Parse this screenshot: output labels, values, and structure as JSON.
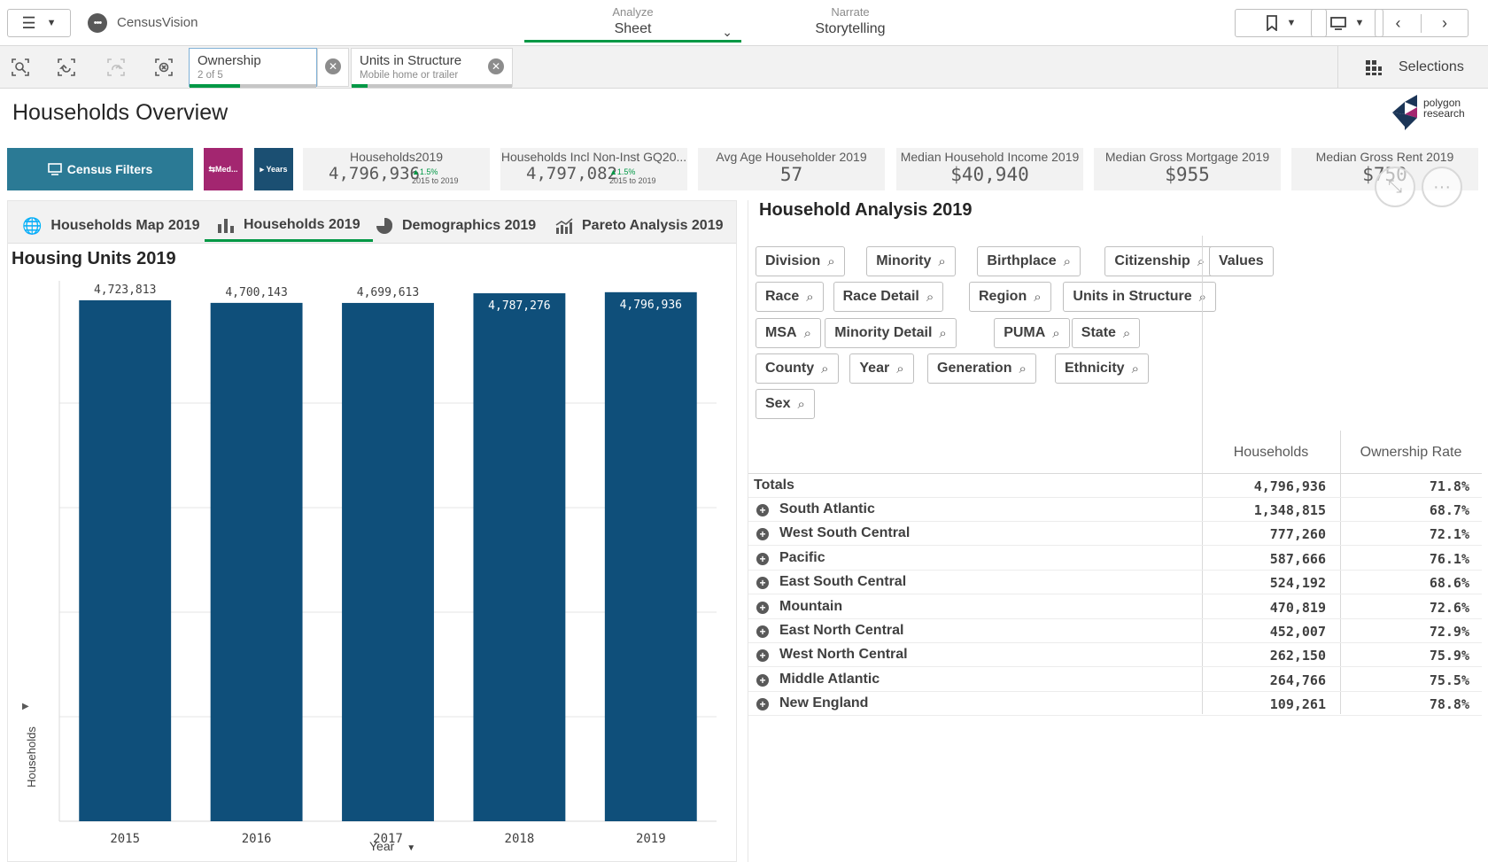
{
  "app": {
    "name": "CensusVision"
  },
  "nav": {
    "analyze_small": "Analyze",
    "analyze_big": "Sheet",
    "narrate_small": "Narrate",
    "narrate_big": "Storytelling"
  },
  "selections_bar": {
    "chips": [
      {
        "field": "Ownership",
        "value": "2 of 5",
        "fill": 0.4
      },
      {
        "field": "Units in Structure",
        "value": "Mobile home or trailer",
        "fill": 0.1
      }
    ],
    "selections_label": "Selections"
  },
  "page": {
    "title": "Households Overview"
  },
  "logo": {
    "line1": "polygon",
    "line2": "research"
  },
  "filters": {
    "census_label": "Census Filters",
    "measure_label": "Med...",
    "years_label": "Years"
  },
  "kpis": [
    {
      "label": "Households2019",
      "value": "4,796,936",
      "change": "1.5%",
      "period": "2015 to 2019"
    },
    {
      "label": "Households Incl Non-Inst GQ20...",
      "value": "4,797,082",
      "change": "1.5%",
      "period": "2015 to 2019"
    },
    {
      "label": "Avg Age Householder 2019",
      "value": "57"
    },
    {
      "label": "Median Household Income 2019",
      "value": "$40,940"
    },
    {
      "label": "Median Gross Mortgage 2019",
      "value": "$955"
    },
    {
      "label": "Median Gross Rent 2019",
      "value": "$750"
    }
  ],
  "tabs": [
    {
      "label": "Households Map 2019"
    },
    {
      "label": "Households 2019"
    },
    {
      "label": "Demographics 2019"
    },
    {
      "label": "Pareto Analysis 2019"
    }
  ],
  "chart_data": {
    "type": "bar",
    "title": "Housing Units 2019",
    "xlabel": "Year",
    "ylabel": "Households",
    "categories": [
      "2015",
      "2016",
      "2017",
      "2018",
      "2019"
    ],
    "values": [
      4723813,
      4700143,
      4699613,
      4787276,
      4796936
    ],
    "data_labels": [
      "4,723,813",
      "4,700,143",
      "4,699,613",
      "4,787,276",
      "4,796,936"
    ],
    "ylim": [
      0,
      4900000
    ],
    "grid": true,
    "color": "#0f4f7a"
  },
  "analysis": {
    "title": "Household Analysis 2019",
    "dimensions": [
      "Division",
      "Minority",
      "Birthplace",
      "Citizenship",
      "Race",
      "Race Detail",
      "Region",
      "Units in Structure",
      "MSA",
      "Minority Detail",
      "PUMA",
      "State",
      "County",
      "Year",
      "Generation",
      "Ethnicity",
      "Sex"
    ],
    "values_label": "Values",
    "columns": [
      "Households",
      "Ownership Rate"
    ],
    "totals": {
      "label": "Totals",
      "households": "4,796,936",
      "rate": "71.8%"
    },
    "rows": [
      {
        "name": "South Atlantic",
        "households": "1,348,815",
        "rate": "68.7%"
      },
      {
        "name": "West South Central",
        "households": "777,260",
        "rate": "72.1%"
      },
      {
        "name": "Pacific",
        "households": "587,666",
        "rate": "76.1%"
      },
      {
        "name": "East South Central",
        "households": "524,192",
        "rate": "68.6%"
      },
      {
        "name": "Mountain",
        "households": "470,819",
        "rate": "72.6%"
      },
      {
        "name": "East North Central",
        "households": "452,007",
        "rate": "72.9%"
      },
      {
        "name": "West North Central",
        "households": "262,150",
        "rate": "75.9%"
      },
      {
        "name": "Middle Atlantic",
        "households": "264,766",
        "rate": "75.5%"
      },
      {
        "name": "New England",
        "households": "109,261",
        "rate": "78.8%"
      }
    ]
  },
  "colors": {
    "accent_green": "#009845",
    "census_btn": "#2b7a95",
    "measure_btn": "#a32670",
    "years_btn": "#1b4f72"
  }
}
